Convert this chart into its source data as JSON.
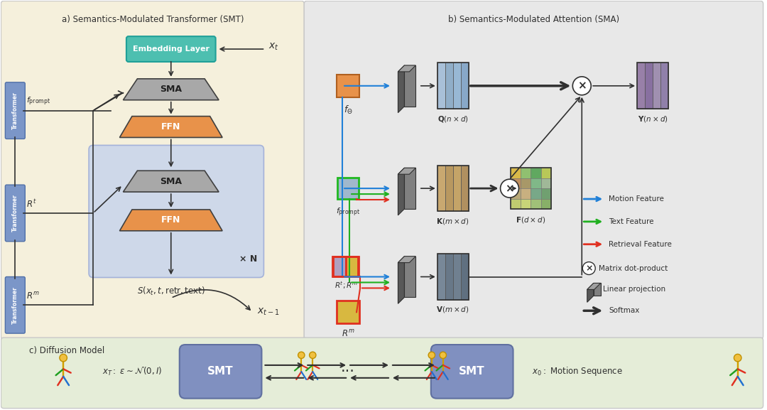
{
  "fig_width": 10.8,
  "fig_height": 5.77,
  "title_a": "a) Semantics-Modulated Transformer (SMT)",
  "title_b": "b) Semantics-Modulated Attention (SMA)",
  "title_c": "c) Diffusion Model",
  "color_orange": "#E8924A",
  "color_gray_trap": "#A8A8A8",
  "color_teal": "#4DBFB0",
  "color_blue_transformer": "#7B96C8",
  "color_repeat_box": "#C8D4EC",
  "color_repeat_edge": "#9AAAD8",
  "color_motion_blue": "#2080D8",
  "color_text_green": "#20B020",
  "color_retrieval_red": "#E03020",
  "color_fo_orange": "#E8924A",
  "color_fp_blue": "#A0B8CC",
  "color_fp_green_border": "#20B820",
  "color_Rt_purple": "#B0A0C0",
  "color_Rm_yellow": "#D8B840",
  "color_Q_blue": "#A0B8D0",
  "color_K_brown": "#C0A070",
  "color_V_gray": "#708090",
  "color_Y_purple": "#9080A8",
  "color_lp_front": "#808080",
  "color_lp_side": "#585858",
  "color_lp_top": "#A0A0A0",
  "color_smt_box": "#8090C0",
  "bg_a": "#F5F0DC",
  "bg_b": "#E8E8E8",
  "bg_c": "#E5EDD8"
}
